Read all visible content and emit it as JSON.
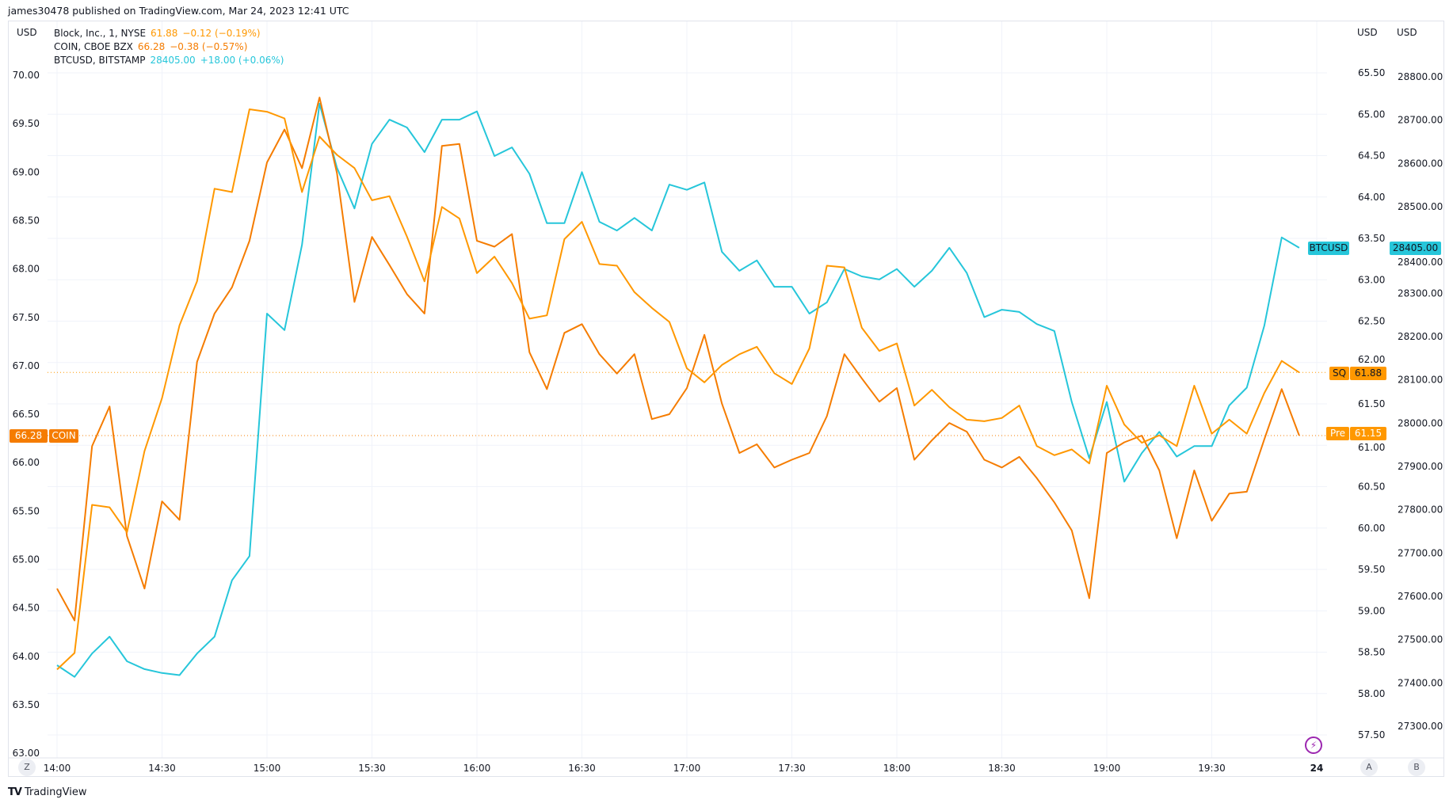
{
  "header": {
    "published": "james30478 published on TradingView.com, Mar 24, 2023 12:41 UTC"
  },
  "legend": [
    {
      "symbol": "Block, Inc., 1, NYSE",
      "last": "61.88",
      "change": "−0.12 (−0.19%)",
      "color": "#ff9800"
    },
    {
      "symbol": "COIN, CBOE BZX",
      "last": "66.28",
      "change": "−0.38 (−0.57%)",
      "color": "#f57c00"
    },
    {
      "symbol": "BTCUSD, BITSTAMP",
      "last": "28405.00",
      "change": "+18.00 (+0.06%)",
      "color": "#26c6da"
    }
  ],
  "axes": {
    "left_unit": "USD",
    "right_unit": "USD",
    "right2_unit": "USD"
  },
  "badges": {
    "coin_value": "66.28",
    "coin_label": "COIN",
    "sq_label": "SQ",
    "sq_value": "61.88",
    "pre_label": "Pre",
    "pre_value": "61.15",
    "btc_label": "BTCUSD",
    "btc_value": "28405.00"
  },
  "buttons": {
    "z": "Z",
    "a": "A",
    "b": "B"
  },
  "logo": "TradingView",
  "chart_data": {
    "type": "line",
    "x": [
      "14:00",
      "14:05",
      "14:10",
      "14:15",
      "14:20",
      "14:25",
      "14:30",
      "14:35",
      "14:40",
      "14:45",
      "14:50",
      "14:55",
      "15:00",
      "15:05",
      "15:10",
      "15:15",
      "15:20",
      "15:25",
      "15:30",
      "15:35",
      "15:40",
      "15:45",
      "15:50",
      "15:55",
      "16:00",
      "16:05",
      "16:10",
      "16:15",
      "16:20",
      "16:25",
      "16:30",
      "16:35",
      "16:40",
      "16:45",
      "16:50",
      "16:55",
      "17:00",
      "17:05",
      "17:10",
      "17:15",
      "17:20",
      "17:25",
      "17:30",
      "17:35",
      "17:40",
      "17:45",
      "17:50",
      "17:55",
      "18:00",
      "18:05",
      "18:10",
      "18:15",
      "18:20",
      "18:25",
      "18:30",
      "18:35",
      "18:40",
      "18:45",
      "18:50",
      "18:55",
      "19:00",
      "19:05",
      "19:10",
      "19:15",
      "19:20",
      "19:25",
      "19:30",
      "19:35",
      "19:40",
      "19:45",
      "19:50",
      "19:55"
    ],
    "x_tick_labels": [
      "14:00",
      "14:30",
      "15:00",
      "15:30",
      "16:00",
      "16:30",
      "17:00",
      "17:30",
      "18:00",
      "18:30",
      "19:00",
      "19:30",
      "24"
    ],
    "series": [
      {
        "name": "Block, Inc., 1, NYSE",
        "axis": "right",
        "color": "#ff9800",
        "values": [
          58.29,
          58.49,
          60.28,
          60.25,
          59.95,
          60.93,
          61.57,
          62.45,
          62.98,
          64.1,
          64.06,
          65.06,
          65.03,
          64.95,
          64.06,
          64.73,
          64.51,
          64.35,
          63.96,
          64.01,
          63.52,
          62.98,
          63.88,
          63.74,
          63.08,
          63.28,
          62.96,
          62.53,
          62.57,
          63.49,
          63.7,
          63.19,
          63.17,
          62.85,
          62.66,
          62.49,
          61.93,
          61.76,
          61.97,
          62.1,
          62.19,
          61.87,
          61.74,
          62.17,
          63.17,
          63.15,
          62.42,
          62.14,
          62.23,
          61.48,
          61.67,
          61.46,
          61.31,
          61.29,
          61.33,
          61.48,
          60.99,
          60.88,
          60.95,
          60.78,
          61.72,
          61.25,
          61.03,
          61.12,
          60.99,
          61.72,
          61.14,
          61.31,
          61.14,
          61.63,
          62.02,
          61.88
        ]
      },
      {
        "name": "COIN, CBOE BZX",
        "axis": "left",
        "color": "#f57c00",
        "values": [
          64.7,
          64.37,
          66.17,
          66.58,
          65.24,
          64.7,
          65.6,
          65.41,
          67.04,
          67.54,
          67.81,
          68.29,
          69.1,
          69.44,
          69.04,
          69.77,
          68.99,
          67.66,
          68.33,
          68.04,
          67.74,
          67.54,
          69.27,
          69.29,
          68.29,
          68.23,
          68.36,
          67.14,
          66.76,
          67.34,
          67.43,
          67.12,
          66.92,
          67.12,
          66.45,
          66.5,
          66.77,
          67.32,
          66.61,
          66.1,
          66.19,
          65.95,
          66.03,
          66.1,
          66.48,
          67.12,
          66.87,
          66.63,
          66.77,
          66.03,
          66.23,
          66.41,
          66.32,
          66.03,
          65.95,
          66.06,
          65.84,
          65.59,
          65.3,
          64.6,
          66.1,
          66.21,
          66.28,
          65.92,
          65.22,
          65.92,
          65.4,
          65.68,
          65.7,
          66.24,
          66.76,
          66.28
        ]
      },
      {
        "name": "BTCUSD, BITSTAMP",
        "axis": "right2",
        "color": "#26c6da",
        "values": [
          27441,
          27414,
          27468,
          27507,
          27450,
          27432,
          27423,
          27418,
          27468,
          27507,
          27637,
          27693,
          28253,
          28215,
          28412,
          28738,
          28590,
          28496,
          28645,
          28701,
          28683,
          28626,
          28701,
          28701,
          28720,
          28617,
          28637,
          28576,
          28462,
          28462,
          28580,
          28465,
          28445,
          28474,
          28445,
          28551,
          28539,
          28556,
          28396,
          28352,
          28376,
          28315,
          28315,
          28253,
          28279,
          28356,
          28339,
          28332,
          28356,
          28315,
          28352,
          28405,
          28347,
          28245,
          28262,
          28257,
          28229,
          28213,
          28049,
          27919,
          28049,
          27865,
          27931,
          27980,
          27923,
          27947,
          27947,
          28041,
          28082,
          28225,
          28429,
          28405
        ]
      }
    ],
    "left_axis": {
      "ylim": [
        63.0,
        70.0
      ],
      "ticks": [
        "70.00",
        "69.50",
        "69.00",
        "68.50",
        "68.00",
        "67.50",
        "67.00",
        "66.50",
        "66.00",
        "65.50",
        "65.00",
        "64.50",
        "64.00",
        "63.50",
        "63.00"
      ]
    },
    "right_axis": {
      "ylim": [
        57.5,
        65.5
      ],
      "ticks": [
        "65.50",
        "65.00",
        "64.50",
        "64.00",
        "63.50",
        "63.00",
        "62.50",
        "62.00",
        "61.50",
        "61.00",
        "60.50",
        "60.00",
        "59.50",
        "59.00",
        "58.50",
        "58.00",
        "57.50"
      ]
    },
    "right2_axis": {
      "ylim": [
        27300,
        28800
      ],
      "ticks": [
        "28800.00",
        "28700.00",
        "28600.00",
        "28500.00",
        "28400.00",
        "28300.00",
        "28200.00",
        "28100.00",
        "28000.00",
        "27900.00",
        "27800.00",
        "27700.00",
        "27600.00",
        "27500.00",
        "27400.00",
        "27300.00"
      ]
    },
    "price_lines": [
      {
        "series": "Block, Inc., 1, NYSE",
        "value": 61.88
      },
      {
        "series": "COIN, CBOE BZX",
        "value": 66.28
      }
    ],
    "grid": true
  }
}
